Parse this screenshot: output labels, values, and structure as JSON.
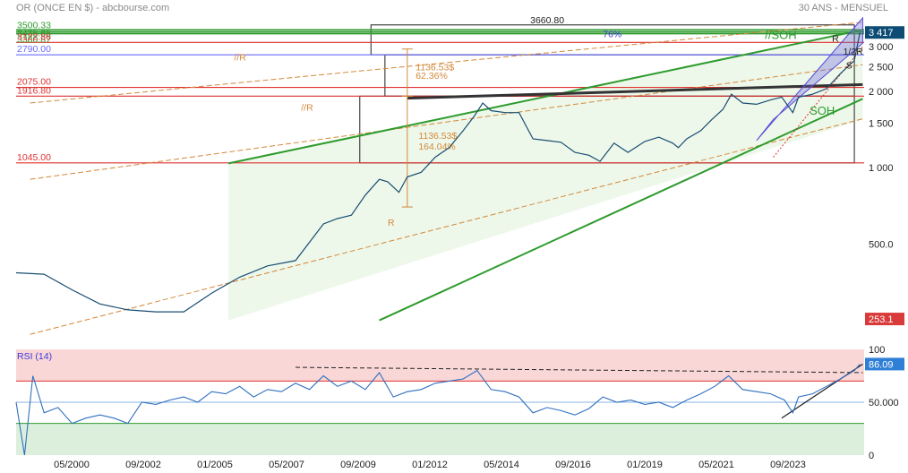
{
  "header": {
    "left": "OR (ONCE EN $) - abcbourse.com",
    "right": "30 ANS - MENSUEL"
  },
  "colors": {
    "price": "#1a4d73",
    "rsi": "#2f6fbf",
    "green": "#2e9b2e",
    "red": "#e03030",
    "orange": "#d4883a",
    "channel": "#5a4bd8",
    "last_price_bg": "#0d4d75",
    "low_bg": "#d93a3a"
  },
  "chart_data": [
    {
      "type": "line",
      "title": "",
      "ylim": [
        200,
        3900
      ],
      "x_ticks": [
        "05/2000",
        "09/2002",
        "01/2005",
        "05/2007",
        "09/2009",
        "01/2012",
        "05/2014",
        "09/2016",
        "01/2019",
        "05/2021",
        "09/2023"
      ],
      "y_ticks": [
        "3 000",
        "2 500",
        "2 000",
        "1 500",
        "1 000",
        "500.0"
      ],
      "y_tick_values": [
        3000,
        2500,
        2000,
        1500,
        1000,
        500
      ],
      "last_price": "3 417",
      "low_label": "253.1",
      "series": [
        {
          "x": [
            1995.0,
            1996.0,
            1997.0,
            1998.0,
            1999.0,
            2000.0,
            2001.0,
            2002.0,
            2003.0,
            2004.0,
            2005.0,
            2006.0,
            2006.5,
            2007.0,
            2007.5,
            2008.0,
            2008.3,
            2008.7,
            2009.0,
            2009.5,
            2010.0,
            2010.5,
            2011.0,
            2011.4,
            2011.7,
            2012.0,
            2012.5,
            2013.0,
            2013.5,
            2014.0,
            2014.5,
            2015.0,
            2015.5,
            2015.9,
            2016.4,
            2016.9,
            2017.5,
            2018.0,
            2018.5,
            2018.7,
            2019.0,
            2019.5,
            2019.9,
            2020.3,
            2020.6,
            2021.0,
            2021.5,
            2022.0,
            2022.4,
            2022.8,
            2023.0,
            2023.5,
            2024.0,
            2024.5,
            2025.0,
            2025.2
          ],
          "values": [
            385,
            380,
            330,
            290,
            275,
            270,
            270,
            320,
            370,
            410,
            430,
            600,
            630,
            650,
            780,
            900,
            880,
            800,
            920,
            960,
            1100,
            1200,
            1400,
            1600,
            1800,
            1680,
            1650,
            1650,
            1300,
            1280,
            1260,
            1150,
            1120,
            1060,
            1250,
            1150,
            1270,
            1320,
            1250,
            1200,
            1300,
            1400,
            1550,
            1700,
            1950,
            1800,
            1780,
            1850,
            1900,
            1650,
            1900,
            1950,
            2050,
            2350,
            2650,
            3417
          ]
        }
      ],
      "levels": [
        {
          "label": "3500.33",
          "value": 3500,
          "color": "#2e9b2e"
        },
        {
          "label": "3435.65",
          "value": 3435,
          "color": "#2e9b2e"
        },
        {
          "label": "3380.87",
          "value": 3380,
          "color": "#2e9b2e"
        },
        {
          "label": "3122.86",
          "value": 3122,
          "color": "#e03030"
        },
        {
          "label": "2790.00",
          "value": 2790,
          "color": "#6a6aff"
        },
        {
          "label": "2075.00",
          "value": 2075,
          "color": "#e03030"
        },
        {
          "label": "1916.80",
          "value": 1916,
          "color": "#e03030"
        },
        {
          "label": "1045.00",
          "value": 1045,
          "color": "#e03030"
        }
      ],
      "annotations": {
        "top_level": "3660.80",
        "pct_channel": "76%",
        "soh_upper": "//SOH",
        "soh_lower": "SOH",
        "r_upper": "//R",
        "r_middle": "//R",
        "r_lower": "R",
        "move_1": "1136.53$",
        "move_1_pct": "62.36%",
        "move_2": "1136.53$",
        "move_2_pct": "164.04%",
        "r_right": "R",
        "half_r": "1/2R",
        "s_right": "S"
      }
    },
    {
      "type": "line",
      "title": "",
      "label": "RSI (14)",
      "ylim": [
        0,
        100
      ],
      "y_ticks": [
        "100",
        "50.000",
        "0"
      ],
      "y_tick_values": [
        100,
        50,
        0
      ],
      "last_value": "86.09",
      "overbought": 70,
      "oversold": 30,
      "series": [
        {
          "x": [
            1995.0,
            1995.3,
            1995.6,
            1996.0,
            1996.5,
            1997.0,
            1997.5,
            1998.0,
            1998.5,
            1999.0,
            1999.5,
            2000.0,
            2000.5,
            2001.0,
            2001.5,
            2002.0,
            2002.5,
            2003.0,
            2003.5,
            2004.0,
            2004.5,
            2005.0,
            2005.5,
            2006.0,
            2006.5,
            2007.0,
            2007.5,
            2008.0,
            2008.5,
            2009.0,
            2009.5,
            2010.0,
            2010.5,
            2011.0,
            2011.5,
            2012.0,
            2012.5,
            2013.0,
            2013.5,
            2014.0,
            2014.5,
            2015.0,
            2015.5,
            2016.0,
            2016.5,
            2017.0,
            2017.5,
            2018.0,
            2018.5,
            2019.0,
            2019.5,
            2020.0,
            2020.5,
            2021.0,
            2021.5,
            2022.0,
            2022.5,
            2022.8,
            2023.0,
            2023.5,
            2024.0,
            2024.5,
            2025.0,
            2025.2
          ],
          "values": [
            50,
            0,
            75,
            40,
            45,
            30,
            35,
            38,
            35,
            30,
            50,
            48,
            52,
            55,
            50,
            60,
            58,
            65,
            55,
            62,
            60,
            68,
            62,
            75,
            65,
            70,
            62,
            78,
            55,
            60,
            62,
            68,
            70,
            72,
            80,
            62,
            60,
            55,
            40,
            45,
            42,
            38,
            44,
            55,
            50,
            52,
            48,
            50,
            45,
            52,
            58,
            65,
            75,
            62,
            60,
            58,
            52,
            40,
            55,
            58,
            65,
            72,
            80,
            86
          ]
        }
      ]
    }
  ]
}
